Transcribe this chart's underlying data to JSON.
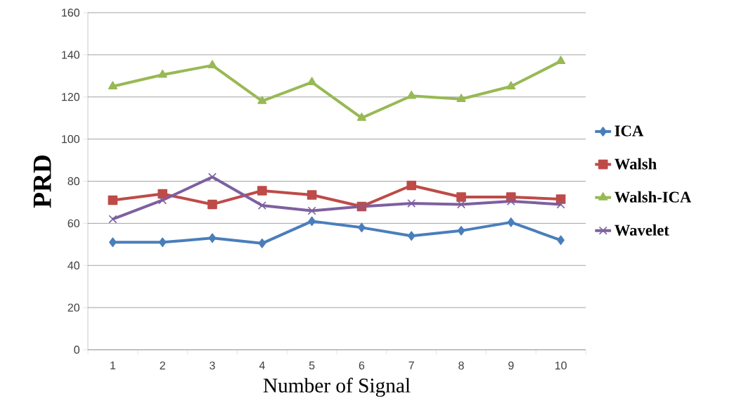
{
  "chart_data": {
    "type": "line",
    "xlabel": "Number of Signal",
    "ylabel": "PRD",
    "categories": [
      "1",
      "2",
      "3",
      "4",
      "5",
      "6",
      "7",
      "8",
      "9",
      "10"
    ],
    "ylim": [
      0,
      160
    ],
    "yticks": [
      0,
      20,
      40,
      60,
      80,
      100,
      120,
      140,
      160
    ],
    "grid": "y",
    "legend": "right",
    "line_style": "solid",
    "series": [
      {
        "name": "ICA",
        "color": "#4a7ebb",
        "marker": "diamond",
        "values": [
          51,
          51,
          53,
          50.5,
          61,
          58,
          54,
          56.5,
          60.5,
          52
        ]
      },
      {
        "name": "Walsh",
        "color": "#be4b48",
        "marker": "square",
        "values": [
          71,
          74,
          69,
          75.5,
          73.5,
          68,
          78,
          72.5,
          72.5,
          71.5
        ]
      },
      {
        "name": "Walsh-ICA",
        "color": "#98b954",
        "marker": "triangle",
        "values": [
          125,
          130.5,
          135,
          118,
          127,
          110,
          120.5,
          119,
          125,
          137
        ]
      },
      {
        "name": "Wavelet",
        "color": "#7d60a0",
        "marker": "cross",
        "values": [
          62,
          71,
          82,
          68.5,
          66,
          68,
          69.5,
          69,
          70.5,
          69
        ]
      }
    ]
  }
}
